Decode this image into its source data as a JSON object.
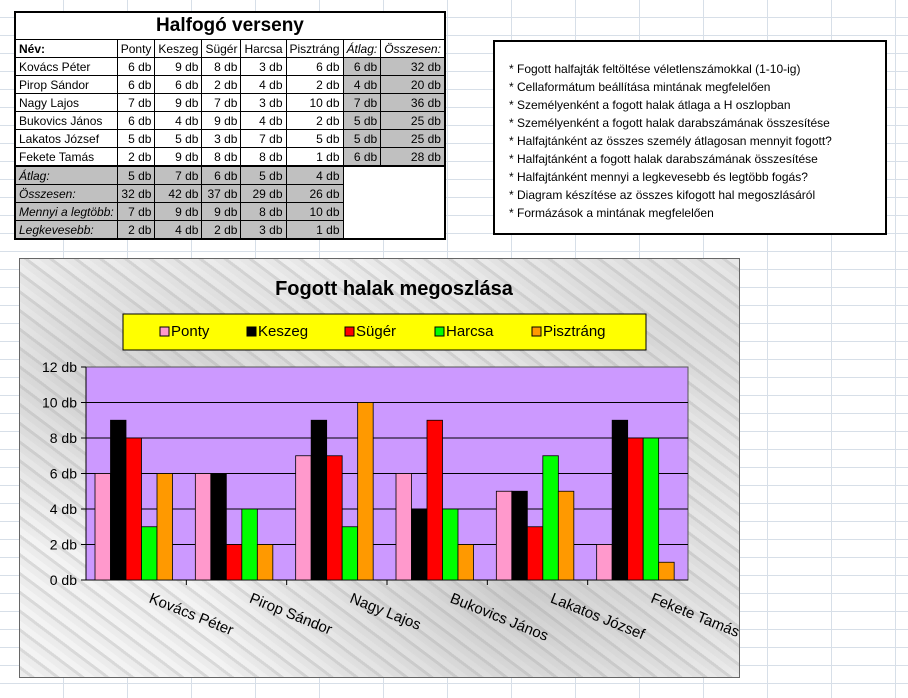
{
  "table": {
    "title": "Halfogó verseny",
    "headers": {
      "name": "Név:",
      "fish": [
        "Ponty",
        "Keszeg",
        "Sügér",
        "Harcsa",
        "Pisztráng"
      ],
      "avg": "Átlag:",
      "total": "Összesen:"
    },
    "rows": [
      {
        "name": "Kovács Péter",
        "values": [
          "6 db",
          "9 db",
          "8 db",
          "3 db",
          "6 db"
        ],
        "avg": "6 db",
        "total": "32 db"
      },
      {
        "name": "Pirop Sándor",
        "values": [
          "6 db",
          "6 db",
          "2 db",
          "4 db",
          "2 db"
        ],
        "avg": "4 db",
        "total": "20 db"
      },
      {
        "name": "Nagy Lajos",
        "values": [
          "7 db",
          "9 db",
          "7 db",
          "3 db",
          "10 db"
        ],
        "avg": "7 db",
        "total": "36 db"
      },
      {
        "name": "Bukovics János",
        "values": [
          "6 db",
          "4 db",
          "9 db",
          "4 db",
          "2 db"
        ],
        "avg": "5 db",
        "total": "25 db"
      },
      {
        "name": "Lakatos József",
        "values": [
          "5 db",
          "5 db",
          "3 db",
          "7 db",
          "5 db"
        ],
        "avg": "5 db",
        "total": "25 db"
      },
      {
        "name": "Fekete Tamás",
        "values": [
          "2 db",
          "9 db",
          "8 db",
          "8 db",
          "1 db"
        ],
        "avg": "6 db",
        "total": "28 db"
      }
    ],
    "summary": [
      {
        "label": "Átlag:",
        "values": [
          "5 db",
          "7 db",
          "6 db",
          "5 db",
          "4 db"
        ]
      },
      {
        "label": "Összesen:",
        "values": [
          "32 db",
          "42 db",
          "37 db",
          "29 db",
          "26 db"
        ]
      },
      {
        "label": "Mennyi a legtöbb:",
        "values": [
          "7 db",
          "9 db",
          "9 db",
          "8 db",
          "10 db"
        ]
      },
      {
        "label": "Legkevesebb:",
        "values": [
          "2 db",
          "4 db",
          "2 db",
          "3 db",
          "1 db"
        ]
      }
    ]
  },
  "tasks": [
    "* Fogott halfajták feltöltése véletlenszámokkal (1-10-ig)",
    "* Cellaformátum beállítása mintának megfelelően",
    "* Személyenként a fogott halak átlaga a H oszlopban",
    "* Személyenként a fogott halak darabszámának összesítése",
    "* Halfajtánként az összes személy átlagosan mennyit fogott?",
    "* Halfajtánként a fogott halak darabszámának összesítése",
    "* Halfajtánként mennyi a legkevesebb és legtöbb fogás?",
    "* Diagram készítése az összes kifogott hal megoszlásáról",
    "* Formázások a mintának megfelelően"
  ],
  "chart_data": {
    "type": "bar",
    "title": "Fogott halak megoszlása",
    "categories": [
      "Kovács Péter",
      "Pirop Sándor",
      "Nagy Lajos",
      "Bukovics János",
      "Lakatos József",
      "Fekete Tamás"
    ],
    "series": [
      {
        "name": "Ponty",
        "color": "#ff99cc",
        "values": [
          6,
          6,
          7,
          6,
          5,
          2
        ]
      },
      {
        "name": "Keszeg",
        "color": "#000000",
        "values": [
          9,
          6,
          9,
          4,
          5,
          9
        ]
      },
      {
        "name": "Sügér",
        "color": "#ff0000",
        "values": [
          8,
          2,
          7,
          9,
          3,
          8
        ]
      },
      {
        "name": "Harcsa",
        "color": "#00ff00",
        "values": [
          3,
          4,
          3,
          4,
          7,
          8
        ]
      },
      {
        "name": "Pisztráng",
        "color": "#ff9900",
        "values": [
          6,
          2,
          10,
          2,
          5,
          1
        ]
      }
    ],
    "ylim": [
      0,
      12
    ],
    "yticks": [
      "0 db",
      "2 db",
      "4 db",
      "6 db",
      "8 db",
      "10 db",
      "12 db"
    ],
    "grid": true,
    "legend_position": "top",
    "plot_background": "#cc99ff",
    "legend_background": "#ffff00"
  }
}
